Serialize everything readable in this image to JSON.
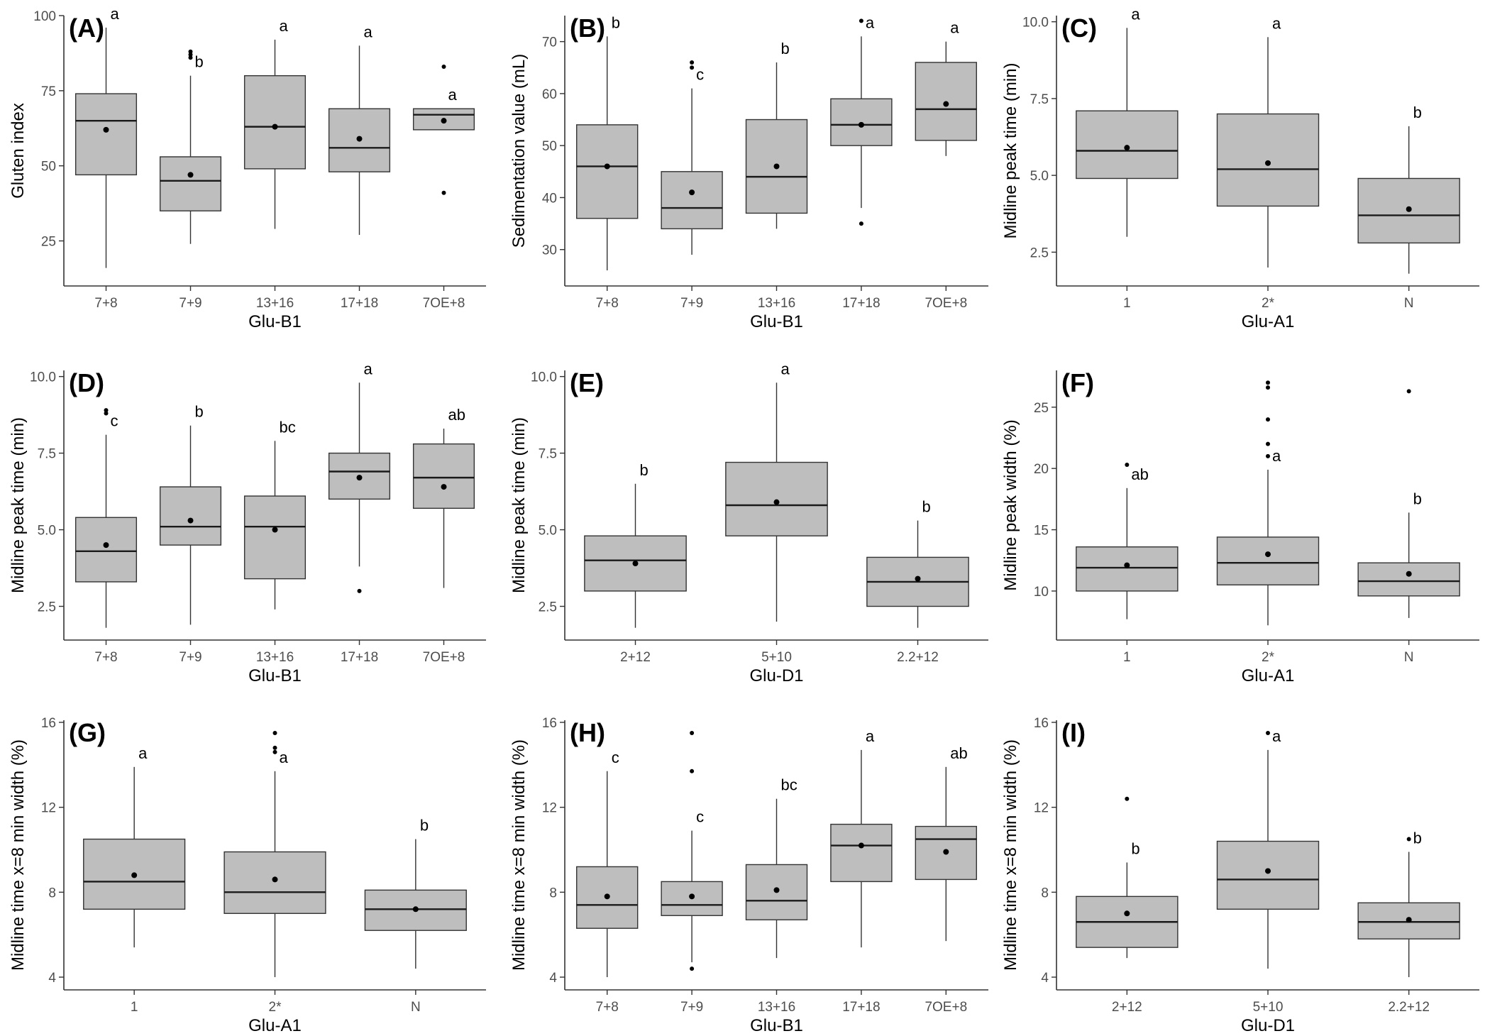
{
  "figure": {
    "colors": {
      "box_fill": "#bebebe",
      "box_stroke": "#333333",
      "axis": "#333333",
      "text": "#000000",
      "tick_text": "#4d4d4d"
    }
  },
  "chart_data": [
    {
      "type": "box",
      "panel_label": "(A)",
      "xlabel": "Glu-B1",
      "ylabel": "Gluten index",
      "ylim": [
        10,
        100
      ],
      "yticks": [
        25,
        50,
        75,
        100
      ],
      "categories": [
        "7+8",
        "7+9",
        "13+16",
        "17+18",
        "7OE+8"
      ],
      "boxes": [
        {
          "min": 16,
          "q1": 47,
          "median": 65,
          "q3": 74,
          "max": 96,
          "mean": 62,
          "outliers": [],
          "letter": "a"
        },
        {
          "min": 24,
          "q1": 35,
          "median": 45,
          "q3": 53,
          "max": 80,
          "mean": 47,
          "outliers": [
            86,
            87,
            88
          ],
          "letter": "b"
        },
        {
          "min": 29,
          "q1": 49,
          "median": 63,
          "q3": 80,
          "max": 92,
          "mean": 63,
          "outliers": [],
          "letter": "a"
        },
        {
          "min": 27,
          "q1": 48,
          "median": 56,
          "q3": 69,
          "max": 90,
          "mean": 59,
          "outliers": [],
          "letter": "a"
        },
        {
          "min": 62,
          "q1": 62,
          "median": 67,
          "q3": 69,
          "max": 69,
          "mean": 65,
          "outliers": [
            41,
            83
          ],
          "letter": "a"
        }
      ]
    },
    {
      "type": "box",
      "panel_label": "(B)",
      "xlabel": "Glu-B1",
      "ylabel": "Sedimentation value (mL)",
      "ylim": [
        23,
        75
      ],
      "yticks": [
        30,
        40,
        50,
        60,
        70
      ],
      "categories": [
        "7+8",
        "7+9",
        "13+16",
        "17+18",
        "7OE+8"
      ],
      "boxes": [
        {
          "min": 26,
          "q1": 36,
          "median": 46,
          "q3": 54,
          "max": 71,
          "mean": 46,
          "outliers": [],
          "letter": "b"
        },
        {
          "min": 29,
          "q1": 34,
          "median": 38,
          "q3": 45,
          "max": 61,
          "mean": 41,
          "outliers": [
            65,
            66
          ],
          "letter": "c"
        },
        {
          "min": 34,
          "q1": 37,
          "median": 44,
          "q3": 55,
          "max": 66,
          "mean": 46,
          "outliers": [],
          "letter": "b"
        },
        {
          "min": 38,
          "q1": 50,
          "median": 54,
          "q3": 59,
          "max": 71,
          "mean": 54,
          "outliers": [
            35,
            74
          ],
          "letter": "a"
        },
        {
          "min": 48,
          "q1": 51,
          "median": 57,
          "q3": 66,
          "max": 70,
          "mean": 58,
          "outliers": [],
          "letter": "a"
        }
      ]
    },
    {
      "type": "box",
      "panel_label": "(C)",
      "xlabel": "Glu-A1",
      "ylabel": "Midline peak time (min)",
      "ylim": [
        1.4,
        10.2
      ],
      "yticks": [
        2.5,
        5.0,
        7.5,
        10.0
      ],
      "tick_format": "1dp",
      "categories": [
        "1",
        "2*",
        "N"
      ],
      "boxes": [
        {
          "min": 3.0,
          "q1": 4.9,
          "median": 5.8,
          "q3": 7.1,
          "max": 9.8,
          "mean": 5.9,
          "outliers": [],
          "letter": "a"
        },
        {
          "min": 2.0,
          "q1": 4.0,
          "median": 5.2,
          "q3": 7.0,
          "max": 9.5,
          "mean": 5.4,
          "outliers": [],
          "letter": "a"
        },
        {
          "min": 1.8,
          "q1": 2.8,
          "median": 3.7,
          "q3": 4.9,
          "max": 6.6,
          "mean": 3.9,
          "outliers": [],
          "letter": "b"
        }
      ]
    },
    {
      "type": "box",
      "panel_label": "(D)",
      "xlabel": "Glu-B1",
      "ylabel": "Midline peak time (min)",
      "ylim": [
        1.4,
        10.2
      ],
      "yticks": [
        2.5,
        5.0,
        7.5,
        10.0
      ],
      "tick_format": "1dp",
      "categories": [
        "7+8",
        "7+9",
        "13+16",
        "17+18",
        "7OE+8"
      ],
      "boxes": [
        {
          "min": 1.8,
          "q1": 3.3,
          "median": 4.3,
          "q3": 5.4,
          "max": 8.1,
          "mean": 4.5,
          "outliers": [
            8.8,
            8.9
          ],
          "letter": "c"
        },
        {
          "min": 1.9,
          "q1": 4.5,
          "median": 5.1,
          "q3": 6.4,
          "max": 8.4,
          "mean": 5.3,
          "outliers": [],
          "letter": "b"
        },
        {
          "min": 2.4,
          "q1": 3.4,
          "median": 5.1,
          "q3": 6.1,
          "max": 7.9,
          "mean": 5.0,
          "outliers": [],
          "letter": "bc"
        },
        {
          "min": 3.8,
          "q1": 6.0,
          "median": 6.9,
          "q3": 7.5,
          "max": 9.8,
          "mean": 6.7,
          "outliers": [
            3.0
          ],
          "letter": "a"
        },
        {
          "min": 3.1,
          "q1": 5.7,
          "median": 6.7,
          "q3": 7.8,
          "max": 8.3,
          "mean": 6.4,
          "outliers": [],
          "letter": "ab"
        }
      ]
    },
    {
      "type": "box",
      "panel_label": "(E)",
      "xlabel": "Glu-D1",
      "ylabel": "Midline peak time (min)",
      "ylim": [
        1.4,
        10.2
      ],
      "yticks": [
        2.5,
        5.0,
        7.5,
        10.0
      ],
      "tick_format": "1dp",
      "categories": [
        "2+12",
        "5+10",
        "2.2+12"
      ],
      "boxes": [
        {
          "min": 1.8,
          "q1": 3.0,
          "median": 4.0,
          "q3": 4.8,
          "max": 6.5,
          "mean": 3.9,
          "outliers": [],
          "letter": "b"
        },
        {
          "min": 2.0,
          "q1": 4.8,
          "median": 5.8,
          "q3": 7.2,
          "max": 9.8,
          "mean": 5.9,
          "outliers": [],
          "letter": "a"
        },
        {
          "min": 1.8,
          "q1": 2.5,
          "median": 3.3,
          "q3": 4.1,
          "max": 5.3,
          "mean": 3.4,
          "outliers": [],
          "letter": "b"
        }
      ]
    },
    {
      "type": "box",
      "panel_label": "(F)",
      "xlabel": "Glu-A1",
      "ylabel": "Midline peak width (%)",
      "ylim": [
        6,
        28
      ],
      "yticks": [
        10,
        15,
        20,
        25
      ],
      "categories": [
        "1",
        "2*",
        "N"
      ],
      "boxes": [
        {
          "min": 7.7,
          "q1": 10.0,
          "median": 11.9,
          "q3": 13.6,
          "max": 18.4,
          "mean": 12.1,
          "outliers": [
            20.3
          ],
          "letter": "ab"
        },
        {
          "min": 7.2,
          "q1": 10.5,
          "median": 12.3,
          "q3": 14.4,
          "max": 19.9,
          "mean": 13.0,
          "outliers": [
            21.0,
            22.0,
            24.0,
            26.6,
            27.0
          ],
          "letter": "a"
        },
        {
          "min": 7.8,
          "q1": 9.6,
          "median": 10.8,
          "q3": 12.3,
          "max": 16.4,
          "mean": 11.4,
          "outliers": [
            26.3
          ],
          "letter": "b"
        }
      ]
    },
    {
      "type": "box",
      "panel_label": "(G)",
      "xlabel": "Glu-A1",
      "ylabel": "Midline time x=8 min width (%)",
      "ylim": [
        3.4,
        16.1
      ],
      "yticks": [
        4,
        8,
        12,
        16
      ],
      "categories": [
        "1",
        "2*",
        "N"
      ],
      "boxes": [
        {
          "min": 5.4,
          "q1": 7.2,
          "median": 8.5,
          "q3": 10.5,
          "max": 13.9,
          "mean": 8.8,
          "outliers": [],
          "letter": "a"
        },
        {
          "min": 4.0,
          "q1": 7.0,
          "median": 8.0,
          "q3": 9.9,
          "max": 13.7,
          "mean": 8.6,
          "outliers": [
            14.6,
            14.8,
            15.5
          ],
          "letter": "a"
        },
        {
          "min": 4.4,
          "q1": 6.2,
          "median": 7.2,
          "q3": 8.1,
          "max": 10.5,
          "mean": 7.2,
          "outliers": [],
          "letter": "b"
        }
      ]
    },
    {
      "type": "box",
      "panel_label": "(H)",
      "xlabel": "Glu-B1",
      "ylabel": "Midline time x=8 min width (%)",
      "ylim": [
        3.4,
        16.1
      ],
      "yticks": [
        4,
        8,
        12,
        16
      ],
      "categories": [
        "7+8",
        "7+9",
        "13+16",
        "17+18",
        "7OE+8"
      ],
      "boxes": [
        {
          "min": 4.0,
          "q1": 6.3,
          "median": 7.4,
          "q3": 9.2,
          "max": 13.7,
          "mean": 7.8,
          "outliers": [],
          "letter": "c"
        },
        {
          "min": 4.7,
          "q1": 6.9,
          "median": 7.4,
          "q3": 8.5,
          "max": 10.9,
          "mean": 7.8,
          "outliers": [
            4.4,
            13.7,
            15.5
          ],
          "letter": "c"
        },
        {
          "min": 4.9,
          "q1": 6.7,
          "median": 7.6,
          "q3": 9.3,
          "max": 12.4,
          "mean": 8.1,
          "outliers": [],
          "letter": "bc"
        },
        {
          "min": 5.4,
          "q1": 8.5,
          "median": 10.2,
          "q3": 11.2,
          "max": 14.7,
          "mean": 10.2,
          "outliers": [],
          "letter": "a"
        },
        {
          "min": 5.7,
          "q1": 8.6,
          "median": 10.5,
          "q3": 11.1,
          "max": 13.9,
          "mean": 9.9,
          "outliers": [],
          "letter": "ab"
        }
      ]
    },
    {
      "type": "box",
      "panel_label": "(I)",
      "xlabel": "Glu-D1",
      "ylabel": "Midline time x=8 min width (%)",
      "ylim": [
        3.4,
        16.1
      ],
      "yticks": [
        4,
        8,
        12,
        16
      ],
      "categories": [
        "2+12",
        "5+10",
        "2.2+12"
      ],
      "boxes": [
        {
          "min": 4.9,
          "q1": 5.4,
          "median": 6.6,
          "q3": 7.8,
          "max": 9.4,
          "mean": 7.0,
          "outliers": [
            12.4
          ],
          "letter": "b"
        },
        {
          "min": 4.4,
          "q1": 7.2,
          "median": 8.6,
          "q3": 10.4,
          "max": 14.7,
          "mean": 9.0,
          "outliers": [
            15.5
          ],
          "letter": "a"
        },
        {
          "min": 4.0,
          "q1": 5.8,
          "median": 6.6,
          "q3": 7.5,
          "max": 9.9,
          "mean": 6.7,
          "outliers": [
            10.5
          ],
          "letter": "b"
        }
      ]
    }
  ]
}
